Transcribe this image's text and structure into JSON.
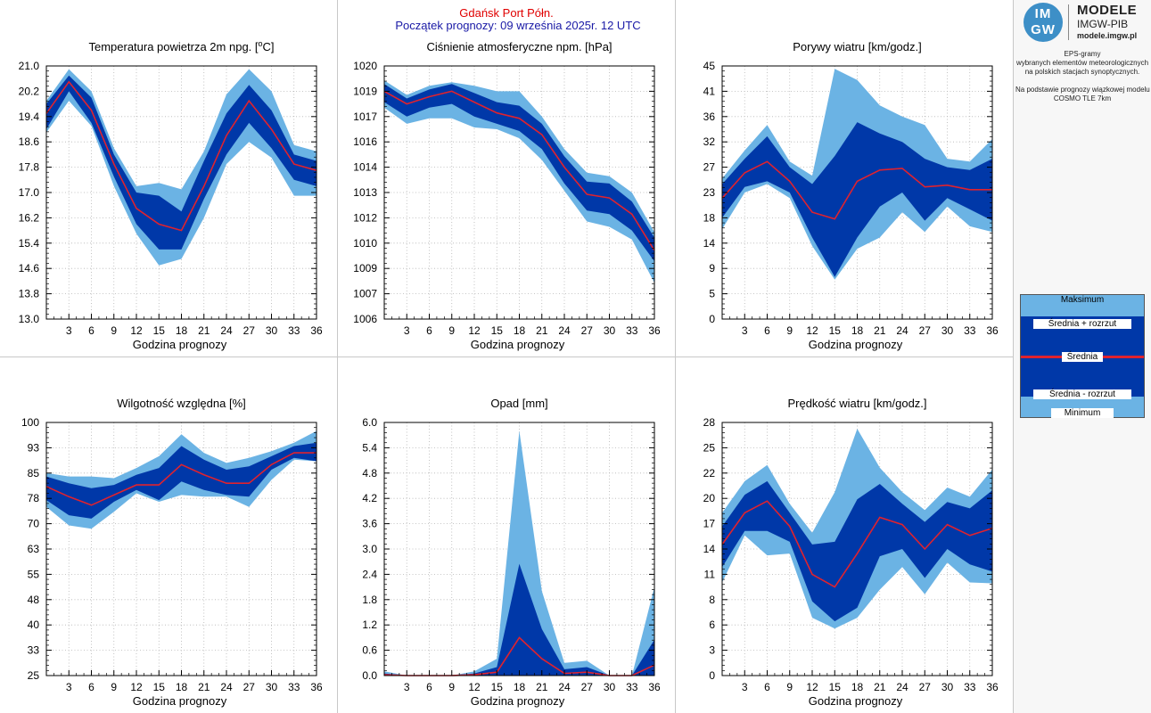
{
  "header": {
    "station": "Gdańsk Port Półn.",
    "forecast_start": "Początek prognozy: 09 września 2025r. 12 UTC",
    "station_color": "#e00000",
    "start_color": "#1a1aa6"
  },
  "colors": {
    "outer_band": "#6bb3e4",
    "inner_band": "#0038a8",
    "mean_line": "#e0222e"
  },
  "logo": {
    "mark_top": "IM",
    "mark_bottom": "GW",
    "title": "MODELE",
    "subtitle": "IMGW-PIB",
    "url": "modele.imgw.pl"
  },
  "sidebar": {
    "description": [
      "EPS-gramy",
      "wybranych elementów meteorologicznych",
      "na polskich stacjach  synoptycznych.",
      "",
      "Na podstawie prognozy wiązkowej modelu",
      "COSMO TLE 7km"
    ]
  },
  "legend": {
    "max": "Maksimum",
    "mean_plus": "Średnia + rozrzut",
    "mean": "Średnia",
    "mean_minus": "Średnia - rozrzut",
    "min": "Minimum"
  },
  "chart_data": [
    {
      "id": "temp",
      "type": "area",
      "title": "Temperatura powietrza 2m npg. [",
      "title_sup": "o",
      "title_unit": "C]",
      "xlabel": "Godzina prognozy",
      "x": [
        0,
        3,
        6,
        9,
        12,
        15,
        18,
        21,
        24,
        27,
        30,
        33,
        36
      ],
      "xticks": [
        "3",
        "6",
        "9",
        "12",
        "15",
        "18",
        "21",
        "24",
        "27",
        "30",
        "33",
        "36"
      ],
      "ylim": [
        13.0,
        21.0
      ],
      "yticks": [
        "13.0",
        "13.8",
        "14.6",
        "15.4",
        "16.2",
        "17.0",
        "17.8",
        "18.6",
        "19.4",
        "20.2",
        "21.0"
      ],
      "series": {
        "max": [
          19.9,
          20.9,
          20.2,
          18.4,
          17.2,
          17.3,
          17.1,
          18.3,
          20.1,
          20.9,
          20.2,
          18.5,
          18.3
        ],
        "p1": [
          19.8,
          20.7,
          20.0,
          18.2,
          17.0,
          16.9,
          16.4,
          18.0,
          19.5,
          20.4,
          19.6,
          18.2,
          18.0
        ],
        "mean": [
          19.5,
          20.5,
          19.6,
          17.9,
          16.5,
          16.0,
          15.8,
          17.2,
          18.8,
          19.9,
          19.0,
          17.9,
          17.7
        ],
        "m1": [
          19.0,
          20.2,
          19.2,
          17.5,
          16.0,
          15.2,
          15.2,
          16.8,
          18.2,
          19.2,
          18.4,
          17.4,
          17.2
        ],
        "min": [
          18.9,
          19.9,
          19.1,
          17.2,
          15.7,
          14.7,
          14.9,
          16.2,
          17.9,
          18.6,
          18.1,
          16.9,
          16.9
        ]
      }
    },
    {
      "id": "pressure",
      "type": "area",
      "title": "Ciśnienie atmosferyczne npm. [hPa]",
      "xlabel": "Godzina prognozy",
      "x": [
        0,
        3,
        6,
        9,
        12,
        15,
        18,
        21,
        24,
        27,
        30,
        33,
        36
      ],
      "xticks": [
        "3",
        "6",
        "9",
        "12",
        "15",
        "18",
        "21",
        "24",
        "27",
        "30",
        "33",
        "36"
      ],
      "ylim": [
        1006,
        1020
      ],
      "ytick_values": [
        1006,
        1007.4,
        1008.8,
        1010.2,
        1011.6,
        1013,
        1014.4,
        1015.8,
        1017.2,
        1018.6,
        1020
      ],
      "yticks": [
        "1006",
        "1007",
        "1009",
        "1010",
        "1012",
        "1013",
        "1014",
        "1016",
        "1017",
        "1019",
        "1020"
      ],
      "series": {
        "max": [
          1019.2,
          1018.4,
          1018.9,
          1019.1,
          1018.9,
          1018.6,
          1018.6,
          1017.2,
          1015.4,
          1014.1,
          1013.9,
          1013.0,
          1010.8
        ],
        "p1": [
          1019.0,
          1018.2,
          1018.7,
          1019.0,
          1018.5,
          1018.0,
          1017.8,
          1016.8,
          1015.0,
          1013.6,
          1013.5,
          1012.5,
          1010.5
        ],
        "mean": [
          1018.6,
          1017.9,
          1018.3,
          1018.6,
          1018.0,
          1017.4,
          1017.1,
          1016.2,
          1014.4,
          1012.9,
          1012.7,
          1011.8,
          1009.8
        ],
        "m1": [
          1018.0,
          1017.2,
          1017.7,
          1017.9,
          1017.2,
          1016.8,
          1016.4,
          1015.4,
          1013.5,
          1012.0,
          1011.8,
          1010.9,
          1009.2
        ],
        "min": [
          1017.7,
          1016.8,
          1017.1,
          1017.1,
          1016.6,
          1016.5,
          1016.0,
          1014.8,
          1013.1,
          1011.4,
          1011.1,
          1010.4,
          1008.0
        ]
      }
    },
    {
      "id": "gusts",
      "type": "area",
      "title": "Porywy wiatru [km/godz.]",
      "xlabel": "Godzina prognozy",
      "x": [
        0,
        3,
        6,
        9,
        12,
        15,
        18,
        21,
        24,
        27,
        30,
        33,
        36
      ],
      "xticks": [
        "3",
        "6",
        "9",
        "12",
        "15",
        "18",
        "21",
        "24",
        "27",
        "30",
        "33",
        "36"
      ],
      "ylim": [
        0,
        45
      ],
      "ytick_values": [
        0,
        4.5,
        9,
        13.5,
        18,
        22.5,
        27,
        31.5,
        36,
        40.5,
        45
      ],
      "yticks": [
        "0",
        "5",
        "9",
        "14",
        "18",
        "23",
        "27",
        "32",
        "36",
        "41",
        "45"
      ],
      "series": {
        "max": [
          25.0,
          30.0,
          34.5,
          28.0,
          25.5,
          44.5,
          42.5,
          38.0,
          36.0,
          34.5,
          28.5,
          28.0,
          32.0
        ],
        "p1": [
          24.0,
          28.5,
          32.5,
          27.0,
          24.0,
          29.0,
          35.0,
          33.0,
          31.5,
          28.5,
          27.0,
          26.5,
          28.5
        ],
        "mean": [
          21.5,
          26.0,
          28.0,
          24.5,
          19.0,
          17.8,
          24.5,
          26.5,
          26.8,
          23.5,
          23.8,
          23.0,
          23.0
        ],
        "m1": [
          18.0,
          23.5,
          24.5,
          22.5,
          14.5,
          7.5,
          14.5,
          20.0,
          22.5,
          17.5,
          21.5,
          19.5,
          17.5
        ],
        "min": [
          16.0,
          22.5,
          24.0,
          21.5,
          13.0,
          7.0,
          12.5,
          14.5,
          19.0,
          15.5,
          20.0,
          16.5,
          15.5
        ]
      }
    },
    {
      "id": "humidity",
      "type": "area",
      "title": "Wilgotność względna [%]",
      "xlabel": "Godzina prognozy",
      "x": [
        0,
        3,
        6,
        9,
        12,
        15,
        18,
        21,
        24,
        27,
        30,
        33,
        36
      ],
      "xticks": [
        "3",
        "6",
        "9",
        "12",
        "15",
        "18",
        "21",
        "24",
        "27",
        "30",
        "33",
        "36"
      ],
      "ylim": [
        25,
        100
      ],
      "ytick_values": [
        25,
        32.5,
        40,
        47.5,
        55,
        62.5,
        70,
        77.5,
        85,
        92.5,
        100
      ],
      "yticks": [
        "25",
        "33",
        "40",
        "48",
        "55",
        "63",
        "70",
        "78",
        "85",
        "93",
        "100"
      ],
      "series": {
        "max": [
          85.0,
          84.0,
          84.0,
          83.5,
          86.5,
          90.0,
          96.5,
          91.0,
          88.0,
          89.5,
          91.5,
          94.0,
          97.5
        ],
        "p1": [
          84.0,
          82.0,
          80.5,
          81.5,
          84.5,
          86.5,
          93.0,
          89.0,
          86.0,
          87.0,
          90.0,
          93.0,
          94.0
        ],
        "mean": [
          81.0,
          78.0,
          75.5,
          78.5,
          81.5,
          81.5,
          87.5,
          84.5,
          82.0,
          82.0,
          87.5,
          91.0,
          91.0
        ],
        "m1": [
          77.0,
          72.5,
          71.5,
          76.5,
          80.0,
          77.0,
          82.5,
          80.0,
          78.5,
          78.0,
          86.0,
          89.5,
          88.5
        ],
        "min": [
          75.0,
          69.5,
          68.5,
          73.5,
          79.0,
          76.5,
          78.5,
          78.0,
          78.0,
          75.0,
          83.0,
          89.0,
          88.5
        ]
      }
    },
    {
      "id": "precip",
      "type": "area",
      "title": "Opad [mm]",
      "xlabel": "Godzina prognozy",
      "x": [
        0,
        3,
        6,
        9,
        12,
        15,
        18,
        21,
        24,
        27,
        30,
        33,
        36
      ],
      "xticks": [
        "3",
        "6",
        "9",
        "12",
        "15",
        "18",
        "21",
        "24",
        "27",
        "30",
        "33",
        "36"
      ],
      "ylim": [
        0.0,
        6.0
      ],
      "yticks": [
        "0.0",
        "0.6",
        "1.2",
        "1.8",
        "2.4",
        "3.0",
        "3.6",
        "4.2",
        "4.8",
        "5.4",
        "6.0"
      ],
      "series": {
        "max": [
          0.1,
          0.0,
          0.0,
          0.0,
          0.1,
          0.4,
          5.8,
          2.0,
          0.3,
          0.35,
          0.0,
          0.0,
          2.1
        ],
        "p1": [
          0.05,
          0.0,
          0.0,
          0.0,
          0.05,
          0.2,
          2.65,
          1.1,
          0.15,
          0.2,
          0.0,
          0.0,
          0.85
        ],
        "mean": [
          0.02,
          0.0,
          0.0,
          0.0,
          0.02,
          0.08,
          0.9,
          0.4,
          0.05,
          0.08,
          0.0,
          0.0,
          0.25
        ],
        "m1": [
          0.0,
          0.0,
          0.0,
          0.0,
          0.0,
          0.0,
          0.0,
          0.0,
          0.0,
          0.0,
          0.0,
          0.0,
          0.0
        ],
        "min": [
          0.0,
          0.0,
          0.0,
          0.0,
          0.0,
          0.0,
          0.0,
          0.0,
          0.0,
          0.0,
          0.0,
          0.0,
          0.0
        ]
      }
    },
    {
      "id": "wind",
      "type": "area",
      "title": "Prędkość wiatru [km/godz.]",
      "xlabel": "Godzina prognozy",
      "x": [
        0,
        3,
        6,
        9,
        12,
        15,
        18,
        21,
        24,
        27,
        30,
        33,
        36
      ],
      "xticks": [
        "3",
        "6",
        "9",
        "12",
        "15",
        "18",
        "21",
        "24",
        "27",
        "30",
        "33",
        "36"
      ],
      "ylim": [
        0,
        28
      ],
      "ytick_values": [
        0,
        2.8,
        5.6,
        8.4,
        11.2,
        14,
        16.8,
        19.6,
        22.4,
        25.2,
        28
      ],
      "yticks": [
        "0",
        "3",
        "6",
        "8",
        "11",
        "14",
        "17",
        "20",
        "22",
        "25",
        "28"
      ],
      "series": {
        "max": [
          18.0,
          21.5,
          23.3,
          19.0,
          15.8,
          20.3,
          27.3,
          23.0,
          20.3,
          18.3,
          20.8,
          19.8,
          22.8
        ],
        "p1": [
          16.5,
          20.0,
          21.5,
          18.0,
          14.5,
          14.8,
          19.5,
          21.2,
          19.0,
          17.0,
          19.2,
          18.5,
          20.5
        ],
        "mean": [
          14.5,
          18.0,
          19.3,
          16.5,
          11.2,
          9.8,
          13.5,
          17.5,
          16.7,
          14.0,
          16.7,
          15.5,
          16.3
        ],
        "m1": [
          12.0,
          16.0,
          16.0,
          14.8,
          8.2,
          6.0,
          7.5,
          13.2,
          14.0,
          10.8,
          14.0,
          12.3,
          11.5
        ],
        "min": [
          10.3,
          15.5,
          13.3,
          13.5,
          6.4,
          5.2,
          6.4,
          9.5,
          12.0,
          9.0,
          12.5,
          10.3,
          10.2
        ]
      }
    }
  ]
}
